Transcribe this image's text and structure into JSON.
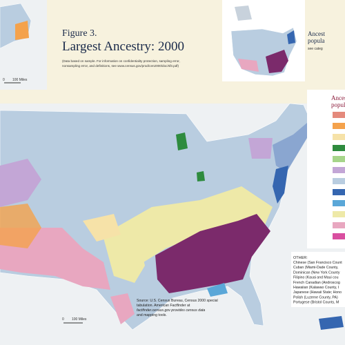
{
  "header": {
    "figure": "Figure 3.",
    "title": "Largest Ancestry: 2000",
    "note": [
      "(Data based on sample. For information on confidentiality protection, sampling error,",
      "nonsampling error, and definitions, see www.census.gov/prod/cen2000/doc/sf3.pdf)"
    ]
  },
  "inset_legend": {
    "title": [
      "Ancest",
      "popula"
    ],
    "note": "see categ"
  },
  "legend": {
    "title": [
      "Ancest",
      "popula"
    ]
  },
  "other": {
    "heading": "OTHER:",
    "items": [
      "Chinese (San Francisco Count",
      "Cuban (Miami-Dade County,",
      "Dominican (New York County",
      "Filipino (Kauai and Maui cou",
      "French Canadian (Androscog",
      "Hawaiian (Kalawao County, I",
      "Japanese (Hawaii State; Hono",
      "Polish (Luzerne County, PA)",
      "Portugese (Bristol Counts, M"
    ]
  },
  "source": [
    "Source: U.S. Census Bureau, Census 2000 special",
    "tabulation. American Factfinder at",
    "factfinder.census.gov provides census data",
    "and mapping tools."
  ],
  "scales": [
    {
      "zero": "0",
      "label": "100 Miles"
    },
    {
      "zero": "0",
      "label": "100 Miles"
    }
  ]
}
